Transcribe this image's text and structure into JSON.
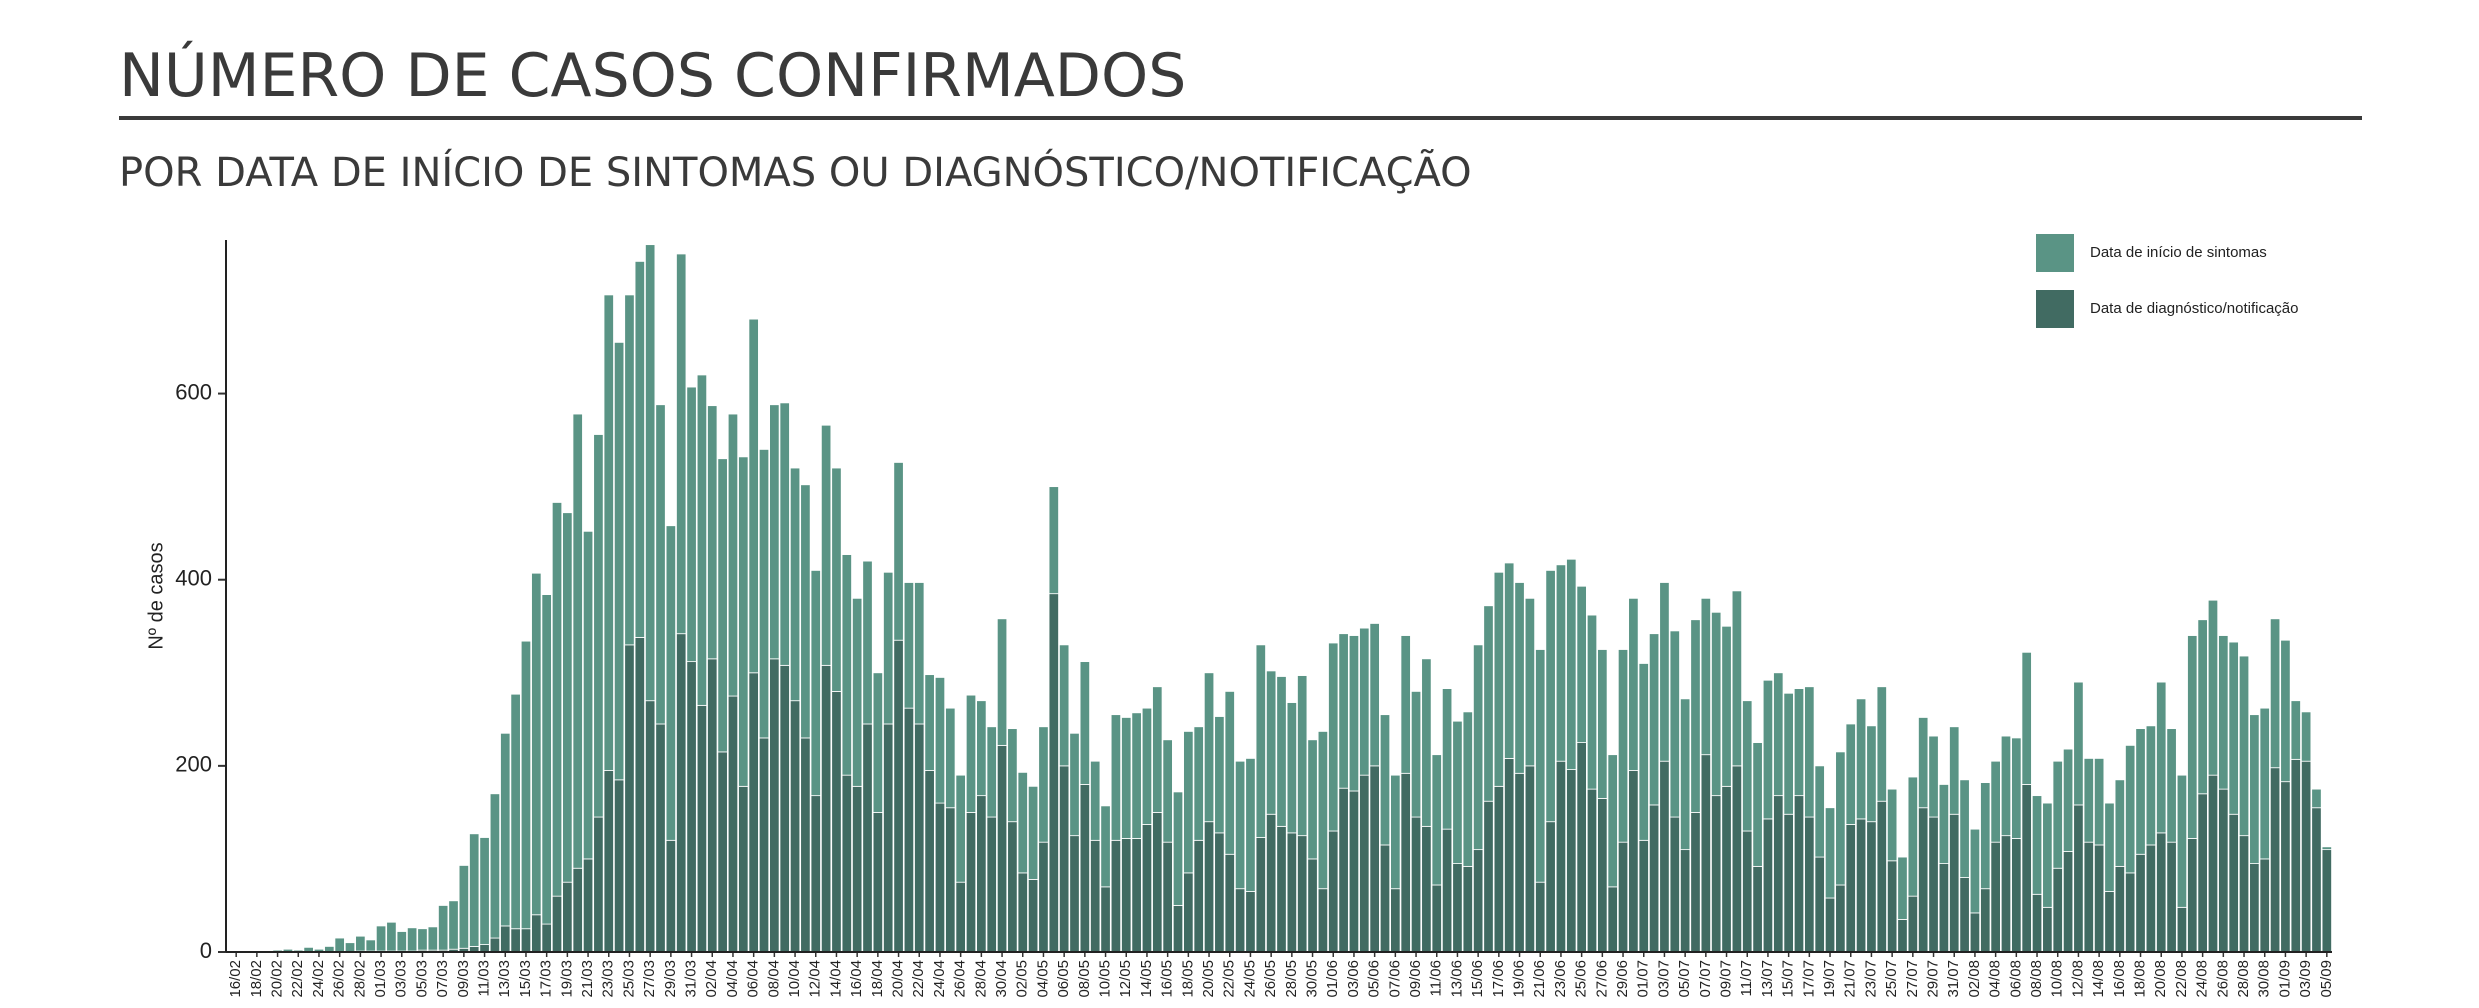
{
  "chart_data": {
    "type": "stacked-bar",
    "title": "NÚMERO DE CASOS CONFIRMADOS",
    "subtitle": "POR DATA DE INÍCIO DE SINTOMAS OU DIAGNÓSTICO/NOTIFICAÇÃO",
    "y_label": "Nº de casos",
    "ylim": [
      0,
      765
    ],
    "yticks": [
      0,
      200,
      400,
      600
    ],
    "grid": false,
    "legend_position": "top-right",
    "categories": [
      "16/02",
      null,
      "18/02",
      null,
      "20/02",
      null,
      "22/02",
      null,
      "24/02",
      null,
      "26/02",
      null,
      "28/02",
      null,
      "01/03",
      null,
      "03/03",
      null,
      "05/03",
      null,
      "07/03",
      null,
      "09/03",
      null,
      "11/03",
      null,
      "13/03",
      null,
      "15/03",
      null,
      "17/03",
      null,
      "19/03",
      null,
      "21/03",
      null,
      "23/03",
      null,
      "25/03",
      null,
      "27/03",
      null,
      "29/03",
      null,
      "31/03",
      null,
      "02/04",
      null,
      "04/04",
      null,
      "06/04",
      null,
      "08/04",
      null,
      "10/04",
      null,
      "12/04",
      null,
      "14/04",
      null,
      "16/04",
      null,
      "18/04",
      null,
      "20/04",
      null,
      "22/04",
      null,
      "24/04",
      null,
      "26/04",
      null,
      "28/04",
      null,
      "30/04",
      null,
      "02/05",
      null,
      "04/05",
      null,
      "06/05",
      null,
      "08/05",
      null,
      "10/05",
      null,
      "12/05",
      null,
      "14/05",
      null,
      "16/05",
      null,
      "18/05",
      null,
      "20/05",
      null,
      "22/05",
      null,
      "24/05",
      null,
      "26/05",
      null,
      "28/05",
      null,
      "30/05",
      null,
      "01/06",
      null,
      "03/06",
      null,
      "05/06",
      null,
      "07/06",
      null,
      "09/06",
      null,
      "11/06",
      null,
      "13/06",
      null,
      "15/06",
      null,
      "17/06",
      null,
      "19/06",
      null,
      "21/06",
      null,
      "23/06",
      null,
      "25/06",
      null,
      "27/06",
      null,
      "29/06",
      null,
      "01/07",
      null,
      "03/07",
      null,
      "05/07",
      null,
      "07/07",
      null,
      "09/07",
      null,
      "11/07",
      null,
      "13/07",
      null,
      "15/07",
      null,
      "17/07",
      null,
      "19/07",
      null,
      "21/07",
      null,
      "23/07",
      null,
      "25/07",
      null,
      "27/07",
      null,
      "29/07",
      null,
      "31/07",
      null,
      "02/08",
      null,
      "04/08",
      null,
      "06/08",
      null,
      "08/08",
      null,
      "10/08",
      null,
      "12/08",
      null,
      "14/08",
      null,
      "16/08",
      null,
      "18/08",
      null,
      "20/08",
      null,
      "22/08",
      null,
      "24/08",
      null,
      "26/08",
      null,
      "28/08",
      null,
      "30/08",
      null,
      "01/09",
      null,
      "03/09",
      null,
      "05/09"
    ],
    "series": [
      {
        "name": "Data de início de sintomas",
        "color": "#5a9485",
        "values": [
          0,
          0,
          1,
          0,
          2,
          3,
          2,
          5,
          3,
          6,
          15,
          10,
          16,
          12,
          27,
          31,
          21,
          25,
          23,
          25,
          48,
          52,
          89,
          121,
          115,
          155,
          207,
          252,
          309,
          367,
          354,
          423,
          397,
          488,
          352,
          411,
          511,
          470,
          376,
          404,
          490,
          343,
          338,
          408,
          295,
          355,
          272,
          315,
          303,
          354,
          380,
          310,
          273,
          282,
          250,
          272,
          242,
          258,
          240,
          237,
          202,
          175,
          150,
          163,
          191,
          135,
          152,
          103,
          135,
          107,
          115,
          126,
          102,
          97,
          136,
          100,
          108,
          100,
          124,
          115,
          130,
          110,
          132,
          85,
          87,
          135,
          130,
          135,
          125,
          135,
          110,
          122,
          152,
          122,
          160,
          125,
          175,
          137,
          143,
          207,
          154,
          161,
          140,
          172,
          128,
          169,
          202,
          166,
          167,
          158,
          153,
          140,
          122,
          148,
          135,
          180,
          140,
          151,
          153,
          166,
          220,
          210,
          230,
          210,
          205,
          180,
          250,
          270,
          211,
          226,
          168,
          187,
          160,
          142,
          207,
          185,
          190,
          184,
          192,
          200,
          162,
          207,
          168,
          197,
          172,
          188,
          140,
          133,
          149,
          132,
          130,
          115,
          140,
          98,
          97,
          143,
          108,
          129,
          103,
          123,
          77,
          67,
          128,
          97,
          87,
          85,
          94,
          105,
          90,
          114,
          87,
          107,
          108,
          142,
          106,
          112,
          115,
          110,
          132,
          90,
          93,
          95,
          93,
          137,
          135,
          128,
          162,
          122,
          142,
          218,
          187,
          188,
          165,
          185,
          193,
          160,
          162,
          160,
          152,
          63,
          53,
          20,
          3
        ]
      },
      {
        "name": "Data de diagnóstico/notificação",
        "color": "#416b62",
        "values": [
          0,
          0,
          0,
          0,
          0,
          0,
          0,
          0,
          0,
          0,
          0,
          0,
          1,
          1,
          1,
          1,
          1,
          1,
          2,
          2,
          2,
          3,
          4,
          6,
          8,
          15,
          28,
          25,
          25,
          40,
          30,
          60,
          75,
          90,
          100,
          145,
          195,
          185,
          330,
          338,
          270,
          245,
          120,
          342,
          312,
          265,
          315,
          215,
          275,
          178,
          300,
          230,
          315,
          308,
          270,
          230,
          168,
          308,
          280,
          190,
          178,
          245,
          150,
          245,
          335,
          262,
          245,
          195,
          160,
          155,
          75,
          150,
          168,
          145,
          222,
          140,
          85,
          78,
          118,
          385,
          200,
          125,
          180,
          120,
          70,
          120,
          122,
          122,
          137,
          150,
          118,
          50,
          85,
          120,
          140,
          128,
          105,
          68,
          65,
          123,
          148,
          135,
          128,
          125,
          100,
          68,
          130,
          176,
          173,
          190,
          200,
          115,
          68,
          192,
          145,
          135,
          72,
          132,
          95,
          92,
          110,
          162,
          178,
          208,
          192,
          200,
          75,
          140,
          205,
          196,
          225,
          175,
          165,
          70,
          118,
          195,
          120,
          158,
          205,
          145,
          110,
          150,
          212,
          168,
          178,
          200,
          130,
          92,
          143,
          168,
          148,
          168,
          145,
          102,
          58,
          72,
          137,
          143,
          140,
          162,
          98,
          35,
          60,
          155,
          145,
          95,
          148,
          80,
          42,
          68,
          118,
          125,
          122,
          180,
          62,
          48,
          90,
          108,
          158,
          118,
          115,
          65,
          92,
          85,
          105,
          115,
          128,
          118,
          48,
          122,
          170,
          190,
          175,
          148,
          125,
          95,
          100,
          198,
          183,
          207,
          205,
          155,
          110
        ]
      }
    ]
  }
}
